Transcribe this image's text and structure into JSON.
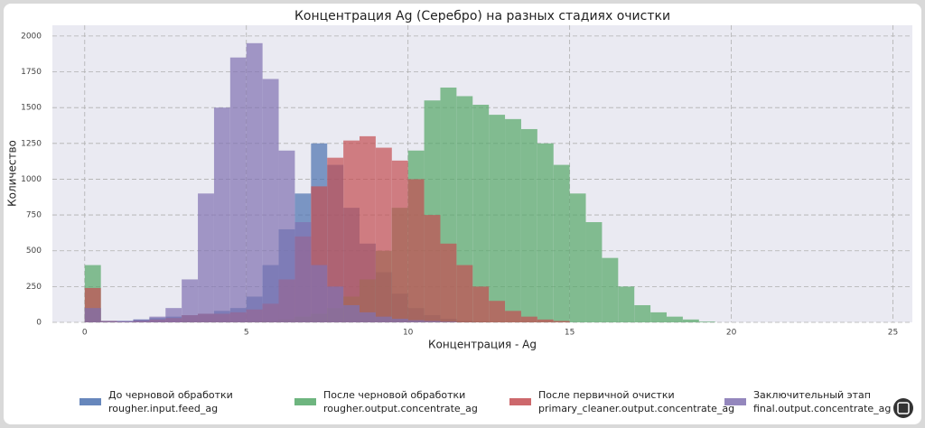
{
  "chart_data": {
    "type": "histogram",
    "title": "Концентрация Ag (Серебро) на разных стадиях очистки",
    "x_label": "Концентрация - Ag",
    "y_label": "Количество",
    "bins": [
      0,
      0.5,
      1,
      1.5,
      2,
      2.5,
      3,
      3.5,
      4,
      4.5,
      5,
      5.5,
      6,
      6.5,
      7,
      7.5,
      8,
      8.5,
      9,
      9.5,
      10,
      10.5,
      11,
      11.5,
      12,
      12.5,
      13,
      13.5,
      14,
      14.5,
      15,
      15.5,
      16,
      16.5,
      17,
      17.5,
      18,
      18.5,
      19,
      19.5,
      20
    ],
    "series": [
      {
        "name": "До черновой обработки\nrougher.input.feed_ag",
        "color": "#4c72b0",
        "values": [
          100,
          10,
          10,
          20,
          30,
          40,
          50,
          60,
          80,
          100,
          180,
          400,
          650,
          900,
          1250,
          1100,
          800,
          550,
          350,
          200,
          100,
          50,
          25,
          10,
          5,
          0,
          0,
          0,
          0,
          0,
          0,
          0,
          0,
          0,
          0,
          0,
          0,
          0,
          0,
          0
        ]
      },
      {
        "name": "После черновой обработки\nrougher.output.concentrate_ag",
        "color": "#55a868",
        "values": [
          400,
          5,
          0,
          0,
          0,
          0,
          5,
          5,
          5,
          5,
          10,
          10,
          20,
          40,
          60,
          100,
          180,
          300,
          500,
          800,
          1200,
          1550,
          1640,
          1580,
          1520,
          1450,
          1420,
          1350,
          1250,
          1100,
          900,
          700,
          450,
          250,
          120,
          70,
          40,
          20,
          5,
          0
        ]
      },
      {
        "name": "После первичной очистки\nprimary_cleaner.output.concentrate_ag",
        "color": "#c44e52",
        "values": [
          240,
          10,
          5,
          10,
          20,
          30,
          50,
          60,
          60,
          70,
          90,
          130,
          300,
          600,
          950,
          1150,
          1270,
          1300,
          1220,
          1130,
          1000,
          750,
          550,
          400,
          250,
          150,
          80,
          40,
          20,
          10,
          0,
          0,
          0,
          0,
          0,
          0,
          0,
          0,
          0,
          0
        ]
      },
      {
        "name": "Заключительный этап\nfinal.output.concentrate_ag",
        "color": "#8172b2",
        "values": [
          100,
          10,
          10,
          20,
          40,
          100,
          300,
          900,
          1500,
          1850,
          1950,
          1700,
          1200,
          700,
          400,
          250,
          120,
          70,
          40,
          25,
          15,
          10,
          5,
          0,
          0,
          0,
          0,
          0,
          0,
          0,
          0,
          0,
          0,
          0,
          0,
          0,
          0,
          0,
          0,
          0
        ]
      }
    ],
    "xlim": [
      -1,
      25.6
    ],
    "xticks": [
      0,
      5,
      10,
      15,
      20,
      25
    ],
    "ylim": [
      0,
      2075
    ],
    "yticks": [
      0,
      250,
      500,
      750,
      1000,
      1250,
      1500,
      1750,
      2000
    ],
    "grid": true,
    "legend": "bottom"
  }
}
